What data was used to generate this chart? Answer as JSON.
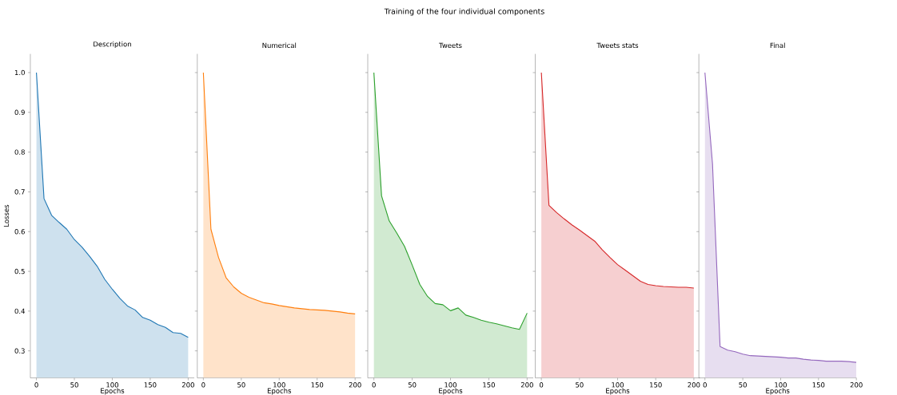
{
  "chart_data": [
    {
      "type": "area",
      "title": "Description",
      "annotations": [
        "Training of the four individual components"
      ],
      "xlabel": "Epochs",
      "ylabel": "Losses",
      "color": "#1f77b4",
      "x": [
        0,
        10,
        20,
        30,
        40,
        50,
        60,
        70,
        80,
        90,
        100,
        110,
        120,
        130,
        140,
        150,
        160,
        170,
        180,
        190,
        200
      ],
      "values": [
        1.0,
        0.683,
        0.641,
        0.623,
        0.606,
        0.58,
        0.561,
        0.538,
        0.513,
        0.48,
        0.455,
        0.432,
        0.413,
        0.403,
        0.384,
        0.377,
        0.366,
        0.359,
        0.346,
        0.344,
        0.334
      ],
      "xlim": [
        -8,
        208
      ],
      "ylim": [
        0.232,
        1.047
      ],
      "xticks": [
        0,
        50,
        100,
        150,
        200
      ],
      "yticks": [
        0.3,
        0.4,
        0.5,
        0.6,
        0.7,
        0.8,
        0.9,
        {
          "value": 1.0,
          "label": "1.0"
        }
      ]
    },
    {
      "type": "area",
      "title": "Numerical",
      "xlabel": "Epochs",
      "color": "#ff7f0e",
      "tick_labels": "x",
      "x": [
        0,
        10,
        20,
        30,
        40,
        50,
        60,
        70,
        80,
        90,
        100,
        110,
        120,
        130,
        140,
        150,
        160,
        170,
        180,
        190,
        200
      ],
      "values": [
        1.0,
        0.606,
        0.535,
        0.484,
        0.461,
        0.445,
        0.435,
        0.428,
        0.421,
        0.418,
        0.414,
        0.411,
        0.408,
        0.406,
        0.404,
        0.403,
        0.402,
        0.4,
        0.398,
        0.395,
        0.393
      ],
      "xlim": [
        -8,
        208
      ],
      "ylim": [
        0.232,
        1.047
      ],
      "xticks": [
        0,
        50,
        100,
        150,
        200
      ],
      "yticks": [
        0.3,
        0.4,
        0.5,
        0.6,
        0.7,
        0.8,
        0.9,
        1.0
      ]
    },
    {
      "type": "area",
      "title": "Tweets",
      "xlabel": "Epochs",
      "color": "#2ca02c",
      "tick_labels": "x",
      "x": [
        0,
        10,
        20,
        30,
        40,
        50,
        60,
        70,
        80,
        90,
        100,
        110,
        120,
        130,
        140,
        150,
        160,
        170,
        180,
        190,
        200
      ],
      "values": [
        1.0,
        0.69,
        0.627,
        0.596,
        0.563,
        0.516,
        0.467,
        0.437,
        0.419,
        0.416,
        0.401,
        0.408,
        0.39,
        0.384,
        0.377,
        0.372,
        0.368,
        0.363,
        0.358,
        0.354,
        0.395
      ],
      "xlim": [
        -8,
        208
      ],
      "ylim": [
        0.232,
        1.047
      ],
      "xticks": [
        0,
        50,
        100,
        150,
        200
      ],
      "yticks": [
        0.3,
        0.4,
        0.5,
        0.6,
        0.7,
        0.8,
        0.9,
        1.0
      ]
    },
    {
      "type": "area",
      "title": "Tweets stats",
      "xlabel": "Epochs",
      "color": "#d62728",
      "tick_labels": "x",
      "x": [
        0,
        10,
        20,
        30,
        40,
        50,
        60,
        70,
        80,
        90,
        100,
        110,
        120,
        130,
        140,
        150,
        160,
        170,
        180,
        190,
        200
      ],
      "values": [
        1.0,
        0.666,
        0.648,
        0.632,
        0.617,
        0.604,
        0.59,
        0.576,
        0.554,
        0.535,
        0.517,
        0.503,
        0.489,
        0.475,
        0.467,
        0.464,
        0.462,
        0.461,
        0.46,
        0.46,
        0.458
      ],
      "xlim": [
        -8,
        208
      ],
      "ylim": [
        0.232,
        1.047
      ],
      "xticks": [
        0,
        50,
        100,
        150,
        200
      ],
      "yticks": [
        0.3,
        0.4,
        0.5,
        0.6,
        0.7,
        0.8,
        0.9,
        1.0
      ]
    },
    {
      "type": "area",
      "title": "Final",
      "xlabel": "Epochs",
      "color": "#9467bd",
      "tick_labels": "x",
      "x": [
        0,
        10,
        20,
        30,
        40,
        50,
        60,
        70,
        80,
        90,
        100,
        110,
        120,
        130,
        140,
        150,
        160,
        170,
        180,
        190,
        200
      ],
      "values": [
        1.0,
        0.77,
        0.311,
        0.302,
        0.298,
        0.292,
        0.288,
        0.287,
        0.286,
        0.285,
        0.284,
        0.282,
        0.282,
        0.279,
        0.277,
        0.276,
        0.274,
        0.274,
        0.274,
        0.273,
        0.271
      ],
      "xlim": [
        -8,
        200
      ],
      "ylim": [
        0.232,
        1.047
      ],
      "xticks": [
        0,
        50,
        100,
        150,
        200
      ],
      "yticks": [
        0.3,
        0.4,
        0.5,
        0.6,
        0.7,
        0.8,
        0.9,
        1.0
      ]
    }
  ]
}
